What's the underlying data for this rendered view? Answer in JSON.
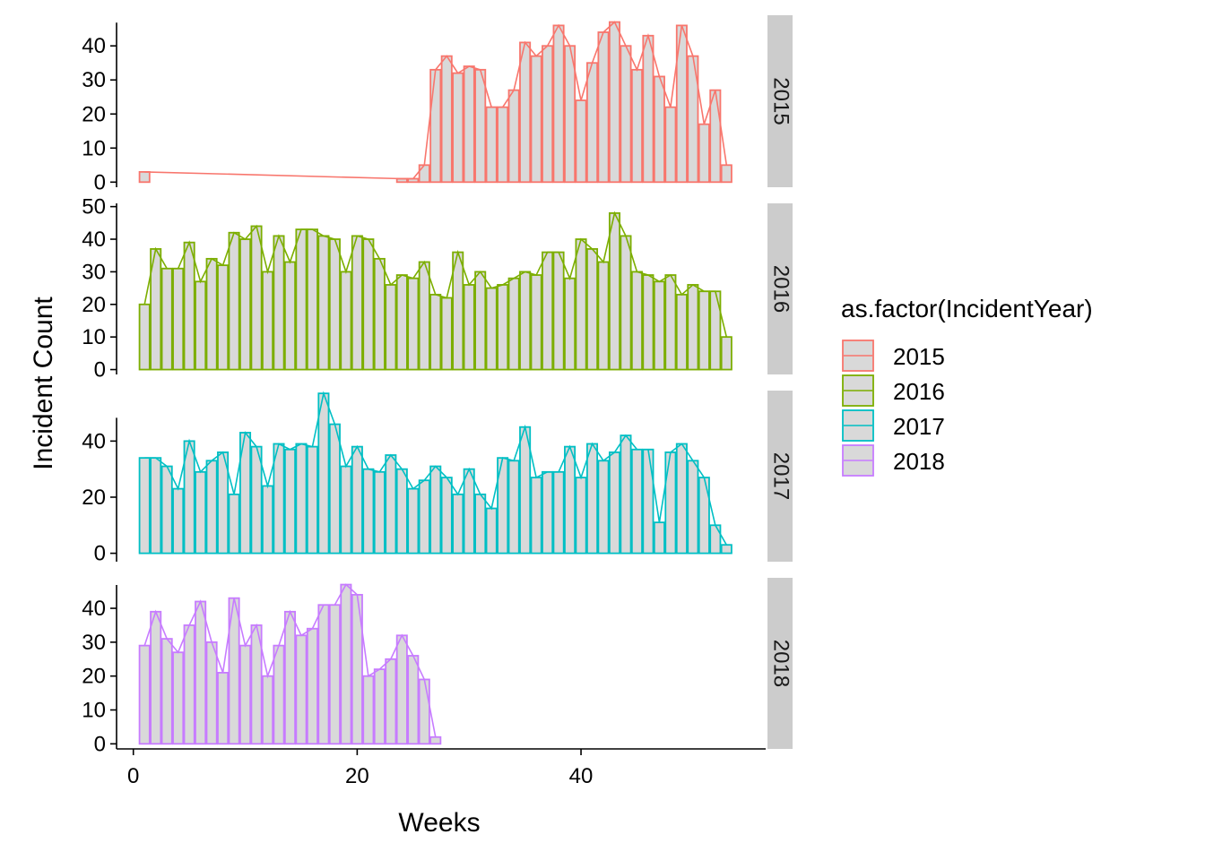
{
  "chart_data": {
    "type": "bar",
    "facet_by": "IncidentYear",
    "xlabel": "Weeks",
    "ylabel": "Incident Count",
    "xlim": [
      -1.5,
      56.5
    ],
    "x_ticks": [
      0,
      20,
      40
    ],
    "bar_fill": "#d9d9d9",
    "legend": {
      "title": "as.factor(IncidentYear)",
      "position": "right",
      "entries": [
        "2015",
        "2016",
        "2017",
        "2018"
      ]
    },
    "panels": [
      {
        "label": "2015",
        "color": "#F8766D",
        "ylim": [
          -1.5,
          49
        ],
        "y_ticks": [
          0,
          10,
          20,
          30,
          40
        ],
        "x": [
          1,
          24,
          25,
          26,
          27,
          28,
          29,
          30,
          31,
          32,
          33,
          34,
          35,
          36,
          37,
          38,
          39,
          40,
          41,
          42,
          43,
          44,
          45,
          46,
          47,
          48,
          49,
          50,
          51,
          52,
          53
        ],
        "values": [
          3,
          1,
          1,
          5,
          33,
          37,
          32,
          34,
          33,
          22,
          22,
          27,
          41,
          37,
          40,
          46,
          40,
          24,
          35,
          44,
          47,
          40,
          33,
          43,
          31,
          22,
          46,
          37,
          17,
          27,
          5
        ]
      },
      {
        "label": "2016",
        "color": "#7CAE00",
        "ylim": [
          -1.5,
          51
        ],
        "y_ticks": [
          0,
          10,
          20,
          30,
          40,
          50
        ],
        "x": [
          1,
          2,
          3,
          4,
          5,
          6,
          7,
          8,
          9,
          10,
          11,
          12,
          13,
          14,
          15,
          16,
          17,
          18,
          19,
          20,
          21,
          22,
          23,
          24,
          25,
          26,
          27,
          28,
          29,
          30,
          31,
          32,
          33,
          34,
          35,
          36,
          37,
          38,
          39,
          40,
          41,
          42,
          43,
          44,
          45,
          46,
          47,
          48,
          49,
          50,
          51,
          52,
          53
        ],
        "values": [
          20,
          37,
          31,
          31,
          39,
          27,
          34,
          32,
          42,
          40,
          44,
          30,
          41,
          33,
          43,
          43,
          41,
          40,
          30,
          41,
          40,
          34,
          26,
          29,
          28,
          33,
          23,
          22,
          36,
          26,
          30,
          25,
          26,
          28,
          30,
          29,
          36,
          36,
          28,
          40,
          37,
          33,
          48,
          41,
          30,
          29,
          27,
          29,
          23,
          26,
          24,
          24,
          10
        ]
      },
      {
        "label": "2017",
        "color": "#00BFC4",
        "ylim": [
          -3,
          58
        ],
        "y_ticks": [
          0,
          20,
          40
        ],
        "x": [
          1,
          2,
          3,
          4,
          5,
          6,
          7,
          8,
          9,
          10,
          11,
          12,
          13,
          14,
          15,
          16,
          17,
          18,
          19,
          20,
          21,
          22,
          23,
          24,
          25,
          26,
          27,
          28,
          29,
          30,
          31,
          32,
          33,
          34,
          35,
          36,
          37,
          38,
          39,
          40,
          41,
          42,
          43,
          44,
          45,
          46,
          47,
          48,
          49,
          50,
          51,
          52,
          53
        ],
        "values": [
          34,
          34,
          31,
          23,
          40,
          29,
          33,
          36,
          21,
          43,
          38,
          24,
          39,
          37,
          39,
          38,
          57,
          46,
          31,
          38,
          30,
          29,
          35,
          30,
          23,
          26,
          31,
          27,
          21,
          30,
          21,
          16,
          34,
          33,
          45,
          27,
          29,
          29,
          38,
          27,
          39,
          33,
          36,
          42,
          37,
          37,
          11,
          36,
          39,
          33,
          27,
          10,
          3
        ]
      },
      {
        "label": "2018",
        "color": "#C77CFF",
        "ylim": [
          -1.5,
          49
        ],
        "y_ticks": [
          0,
          10,
          20,
          30,
          40
        ],
        "x": [
          1,
          2,
          3,
          4,
          5,
          6,
          7,
          8,
          9,
          10,
          11,
          12,
          13,
          14,
          15,
          16,
          17,
          18,
          19,
          20,
          21,
          22,
          23,
          24,
          25,
          26,
          27
        ],
        "values": [
          29,
          39,
          31,
          27,
          35,
          42,
          30,
          21,
          43,
          29,
          35,
          20,
          29,
          39,
          32,
          34,
          41,
          41,
          47,
          44,
          20,
          22,
          25,
          32,
          26,
          19,
          2
        ]
      }
    ]
  }
}
